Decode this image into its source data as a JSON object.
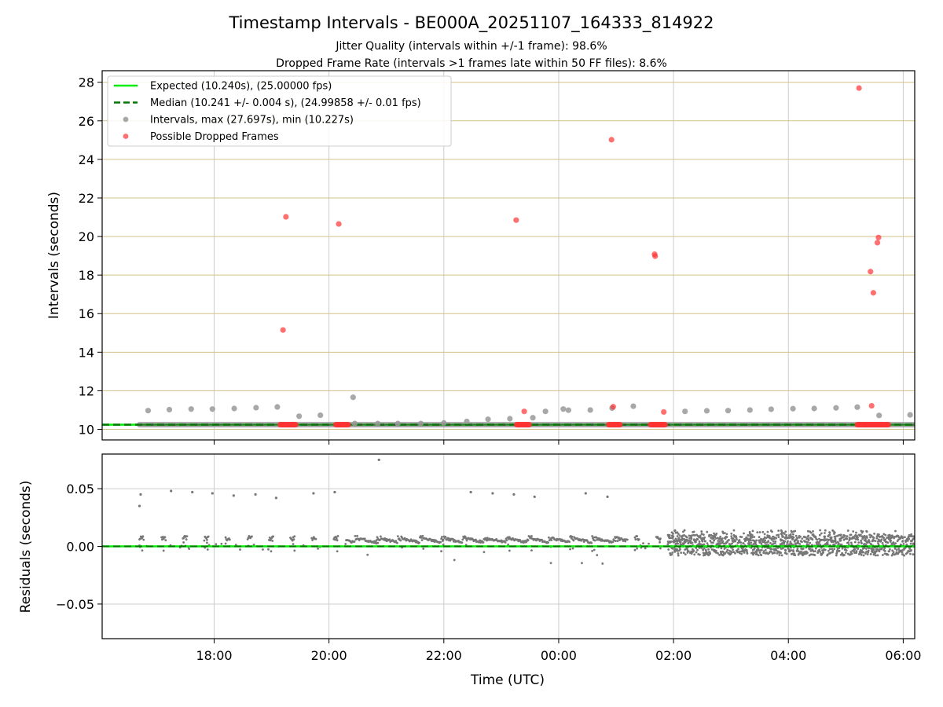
{
  "chart_data": {
    "type": "scatter",
    "title": "Timestamp Intervals - BE000A_20251107_164333_814922",
    "subtitles": [
      "Jitter Quality (intervals within +/-1 frame): 98.6%",
      "Dropped Frame Rate (intervals >1 frames late within 50 FF files): 8.6%"
    ],
    "colors": {
      "expected": "#00ee00",
      "median": "#007700",
      "intervals": "#999999",
      "dropped": "#ff3333",
      "residuals": "#777777",
      "hgrid_top": "#d4c08a",
      "vgrid": "#cccccc"
    },
    "x_axis": {
      "label": "Time (UTC)",
      "range_hours": [
        16.05,
        30.2
      ],
      "ticks": [
        {
          "hour": 18,
          "label": "18:00"
        },
        {
          "hour": 20,
          "label": "20:00"
        },
        {
          "hour": 22,
          "label": "22:00"
        },
        {
          "hour": 24,
          "label": "00:00"
        },
        {
          "hour": 26,
          "label": "02:00"
        },
        {
          "hour": 28,
          "label": "04:00"
        },
        {
          "hour": 30,
          "label": "06:00"
        }
      ]
    },
    "top_panel": {
      "ylabel": "Intervals (seconds)",
      "ylim": [
        9.45,
        28.6
      ],
      "yticks": [
        10,
        12,
        14,
        16,
        18,
        20,
        22,
        24,
        26,
        28
      ],
      "expected_interval": 10.24,
      "median_interval": 10.241,
      "legend": [
        {
          "key": "expected",
          "label": "Expected (10.240s), (25.00000 fps)"
        },
        {
          "key": "median",
          "label": "Median (10.241 +/- 0.004 s), (24.99858 +/- 0.01 fps)"
        },
        {
          "key": "intervals",
          "label": "Intervals, max (27.697s), min (10.227s)"
        },
        {
          "key": "dropped",
          "label": "Possible Dropped Frames"
        }
      ],
      "intervals_baseline_span": [
        16.7,
        30.2
      ],
      "intervals": [
        [
          16.85,
          10.97
        ],
        [
          17.22,
          11.02
        ],
        [
          17.6,
          11.05
        ],
        [
          17.97,
          11.05
        ],
        [
          18.35,
          11.08
        ],
        [
          18.73,
          11.12
        ],
        [
          19.1,
          11.16
        ],
        [
          19.48,
          10.68
        ],
        [
          19.85,
          10.73
        ],
        [
          20.42,
          11.66
        ],
        [
          20.45,
          10.3
        ],
        [
          20.85,
          10.3
        ],
        [
          21.2,
          10.3
        ],
        [
          21.6,
          10.3
        ],
        [
          22.0,
          10.33
        ],
        [
          22.4,
          10.41
        ],
        [
          22.77,
          10.52
        ],
        [
          23.15,
          10.55
        ],
        [
          23.55,
          10.6
        ],
        [
          23.77,
          10.93
        ],
        [
          24.08,
          11.05
        ],
        [
          24.17,
          10.99
        ],
        [
          24.55,
          11.0
        ],
        [
          24.93,
          11.1
        ],
        [
          25.3,
          11.2
        ],
        [
          26.2,
          10.93
        ],
        [
          26.58,
          10.96
        ],
        [
          26.95,
          10.97
        ],
        [
          27.33,
          11.0
        ],
        [
          27.7,
          11.04
        ],
        [
          28.08,
          11.07
        ],
        [
          28.45,
          11.08
        ],
        [
          28.83,
          11.11
        ],
        [
          29.2,
          11.15
        ],
        [
          29.58,
          10.72
        ],
        [
          30.12,
          10.75
        ]
      ],
      "dropped": [
        [
          19.25,
          21.02
        ],
        [
          19.2,
          15.15
        ],
        [
          20.17,
          20.65
        ],
        [
          23.26,
          20.85
        ],
        [
          23.4,
          10.93
        ],
        [
          24.92,
          25.02
        ],
        [
          24.95,
          11.17
        ],
        [
          25.67,
          19.08
        ],
        [
          25.68,
          18.98
        ],
        [
          25.83,
          10.9
        ],
        [
          29.23,
          27.7
        ],
        [
          29.43,
          18.18
        ],
        [
          29.48,
          17.08
        ],
        [
          29.57,
          19.95
        ],
        [
          29.55,
          19.68
        ],
        [
          29.45,
          11.22
        ]
      ],
      "dropped_clusters": [
        [
          19.15,
          19.43
        ],
        [
          20.12,
          20.35
        ],
        [
          23.27,
          23.5
        ],
        [
          24.87,
          25.07
        ],
        [
          25.6,
          25.87
        ],
        [
          29.2,
          29.75
        ]
      ]
    },
    "bottom_panel": {
      "ylabel": "Residuals (seconds)",
      "ylim": [
        -0.08,
        0.08
      ],
      "yticks": [
        {
          "value": 0.05,
          "label": "0.05"
        },
        {
          "value": 0.0,
          "label": "0.00"
        },
        {
          "value": -0.05,
          "label": "−0.05"
        }
      ],
      "outliers": [
        [
          16.72,
          0.045
        ],
        [
          16.7,
          0.035
        ],
        [
          17.25,
          0.048
        ],
        [
          17.62,
          0.047
        ],
        [
          17.97,
          0.046
        ],
        [
          18.34,
          0.044
        ],
        [
          18.72,
          0.045
        ],
        [
          19.08,
          0.042
        ],
        [
          19.73,
          0.046
        ],
        [
          20.1,
          0.047
        ],
        [
          20.87,
          0.075
        ],
        [
          22.47,
          0.047
        ],
        [
          22.85,
          0.046
        ],
        [
          23.22,
          0.045
        ],
        [
          23.58,
          0.043
        ],
        [
          24.47,
          0.046
        ],
        [
          24.85,
          0.043
        ]
      ]
    }
  }
}
